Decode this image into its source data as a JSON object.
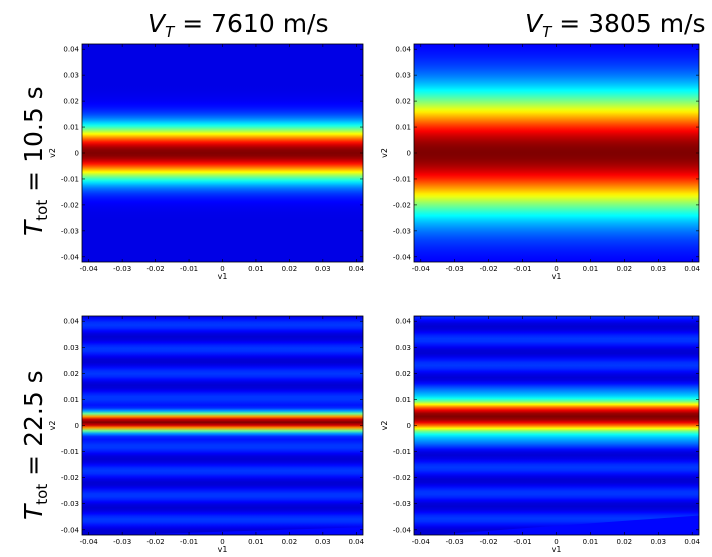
{
  "column_titles": [
    {
      "symbol": "V",
      "sub": "T",
      "value": " = 7610 m/s"
    },
    {
      "symbol": "V",
      "sub": "T",
      "value": " = 3805 m/s"
    }
  ],
  "row_titles": [
    {
      "symbol": "T",
      "sub": "tot",
      "value": " = 10.5 s"
    },
    {
      "symbol": "T",
      "sub": "tot",
      "value": " = 22.5 s"
    }
  ],
  "chart_data": [
    {
      "type": "heatmap",
      "xlabel": "v1",
      "ylabel": "v2",
      "xlim": [
        -0.042,
        0.042
      ],
      "ylim": [
        -0.042,
        0.042
      ],
      "xticks": [
        -0.04,
        -0.03,
        -0.02,
        -0.01,
        0,
        0.01,
        0.02,
        0.03,
        0.04
      ],
      "yticks": [
        -0.04,
        -0.03,
        -0.02,
        -0.01,
        0,
        0.01,
        0.02,
        0.03,
        0.04
      ],
      "band": {
        "center_left": 0.0,
        "center_right": 0.0,
        "half_width": 0.0095,
        "background": 0.1
      },
      "colormap": "jet"
    },
    {
      "type": "heatmap",
      "xlabel": "v1",
      "ylabel": "v2",
      "xlim": [
        -0.042,
        0.042
      ],
      "ylim": [
        -0.042,
        0.042
      ],
      "xticks": [
        -0.04,
        -0.03,
        -0.02,
        -0.01,
        0,
        0.01,
        0.02,
        0.03,
        0.04
      ],
      "yticks": [
        -0.04,
        -0.03,
        -0.02,
        -0.01,
        0,
        0.01,
        0.02,
        0.03,
        0.04
      ],
      "band": {
        "center_left": 0.0,
        "center_right": 0.0,
        "half_width": 0.021,
        "background": 0.1
      },
      "colormap": "jet"
    },
    {
      "type": "heatmap",
      "xlabel": "v1",
      "ylabel": "v2",
      "xlim": [
        -0.042,
        0.042
      ],
      "ylim": [
        -0.042,
        0.042
      ],
      "xticks": [
        -0.04,
        -0.03,
        -0.02,
        -0.01,
        0,
        0.01,
        0.02,
        0.03,
        0.04
      ],
      "yticks": [
        -0.04,
        -0.03,
        -0.02,
        -0.01,
        0,
        0.01,
        0.02,
        0.03,
        0.04
      ],
      "band": {
        "center_left": -0.0005,
        "center_right": 0.003,
        "half_width": 0.0032,
        "background": 0.13,
        "ripple": true
      },
      "colormap": "jet"
    },
    {
      "type": "heatmap",
      "xlabel": "v1",
      "ylabel": "v2",
      "xlim": [
        -0.042,
        0.042
      ],
      "ylim": [
        -0.042,
        0.042
      ],
      "xticks": [
        -0.04,
        -0.03,
        -0.02,
        -0.01,
        0,
        0.01,
        0.02,
        0.03,
        0.04
      ],
      "yticks": [
        -0.04,
        -0.03,
        -0.02,
        -0.01,
        0,
        0.01,
        0.02,
        0.03,
        0.04
      ],
      "band": {
        "center_left": -0.0005,
        "center_right": 0.0075,
        "half_width": 0.0055,
        "background": 0.13,
        "ripple": true
      },
      "colormap": "jet"
    }
  ]
}
